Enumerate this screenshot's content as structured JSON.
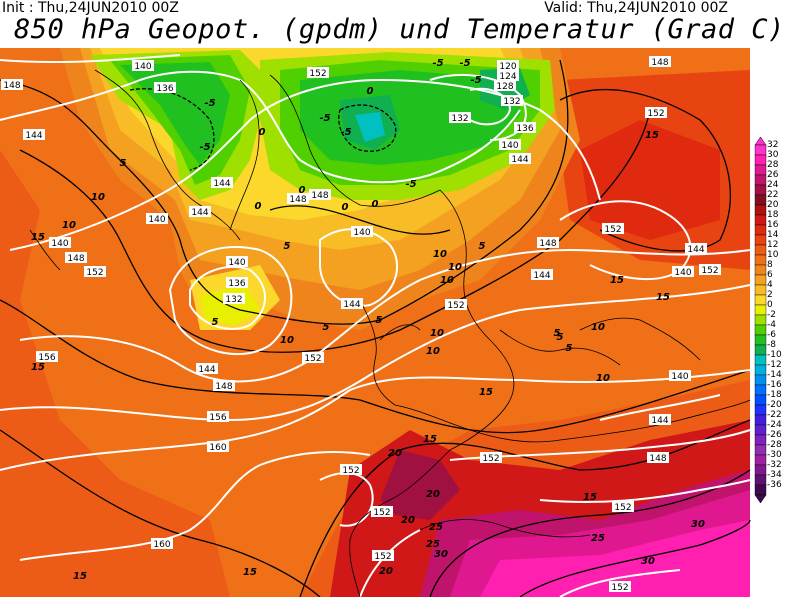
{
  "header": {
    "init": "Init : Thu,24JUN2010 00Z",
    "valid": "Valid: Thu,24JUN2010 00Z",
    "title": "850 hPa Geopot. (gpdm) und Temperatur (Grad C)"
  },
  "colorbar": {
    "labels": [
      "32",
      "30",
      "28",
      "26",
      "24",
      "22",
      "20",
      "18",
      "16",
      "14",
      "12",
      "10",
      "8",
      "6",
      "4",
      "2",
      "0",
      "-2",
      "-4",
      "-6",
      "-8",
      "-10",
      "-12",
      "-14",
      "-16",
      "-18",
      "-20",
      "-22",
      "-24",
      "-26",
      "-28",
      "-30",
      "-32",
      "-34",
      "-36"
    ],
    "colors": [
      "#ff33cc",
      "#ff1fb0",
      "#e01890",
      "#c0146c",
      "#a01040",
      "#801020",
      "#b01010",
      "#d01818",
      "#e02a10",
      "#e84412",
      "#ec5c16",
      "#f07018",
      "#f0841c",
      "#f4a020",
      "#f8bc26",
      "#fcd82c",
      "#e8f000",
      "#a0e000",
      "#50d000",
      "#20c020",
      "#10b050",
      "#00c0c0",
      "#00b0e0",
      "#0090f0",
      "#0070ff",
      "#0050ff",
      "#2030ff",
      "#4020e0",
      "#6020d0",
      "#8020c0",
      "#9030b0",
      "#a020a0",
      "#801890",
      "#601070",
      "#400850"
    ]
  },
  "geopotential_labels": [
    {
      "t": "148"
    },
    {
      "t": "140"
    },
    {
      "t": "136"
    },
    {
      "t": "152"
    },
    {
      "t": "120"
    },
    {
      "t": "124"
    },
    {
      "t": "128"
    },
    {
      "t": "132"
    },
    {
      "t": "136"
    },
    {
      "t": "132"
    },
    {
      "t": "140"
    },
    {
      "t": "144"
    },
    {
      "t": "148"
    },
    {
      "t": "152"
    },
    {
      "t": "144"
    },
    {
      "t": "144"
    },
    {
      "t": "144"
    },
    {
      "t": "140"
    },
    {
      "t": "148"
    },
    {
      "t": "148"
    },
    {
      "t": "152"
    },
    {
      "t": "140"
    },
    {
      "t": "136"
    },
    {
      "t": "132"
    },
    {
      "t": "140"
    },
    {
      "t": "144"
    },
    {
      "t": "152"
    },
    {
      "t": "148"
    },
    {
      "t": "144"
    },
    {
      "t": "144"
    },
    {
      "t": "140"
    },
    {
      "t": "144"
    },
    {
      "t": "152"
    },
    {
      "t": "148"
    },
    {
      "t": "156"
    },
    {
      "t": "156"
    },
    {
      "t": "160"
    },
    {
      "t": "152"
    },
    {
      "t": "152"
    },
    {
      "t": "152"
    },
    {
      "t": "160"
    },
    {
      "t": "152"
    },
    {
      "t": "152"
    },
    {
      "t": "144"
    },
    {
      "t": "140"
    },
    {
      "t": "148"
    },
    {
      "t": "152"
    },
    {
      "t": "152"
    },
    {
      "t": "140"
    },
    {
      "t": "148"
    },
    {
      "t": "152"
    }
  ],
  "temperature_labels": [
    {
      "t": "-5"
    },
    {
      "t": "-5"
    },
    {
      "t": "-5"
    },
    {
      "t": "-5"
    },
    {
      "t": "-5"
    },
    {
      "t": "-5"
    },
    {
      "t": "0"
    },
    {
      "t": "0"
    },
    {
      "t": "0"
    },
    {
      "t": "0"
    },
    {
      "t": "0"
    },
    {
      "t": "0"
    },
    {
      "t": "5"
    },
    {
      "t": "5"
    },
    {
      "t": "5"
    },
    {
      "t": "5"
    },
    {
      "t": "5"
    },
    {
      "t": "5"
    },
    {
      "t": "5"
    },
    {
      "t": "5"
    },
    {
      "t": "10"
    },
    {
      "t": "10"
    },
    {
      "t": "10"
    },
    {
      "t": "10"
    },
    {
      "t": "10"
    },
    {
      "t": "10"
    },
    {
      "t": "10"
    },
    {
      "t": "10"
    },
    {
      "t": "10"
    },
    {
      "t": "15"
    },
    {
      "t": "15"
    },
    {
      "t": "15"
    },
    {
      "t": "15"
    },
    {
      "t": "15"
    },
    {
      "t": "15"
    },
    {
      "t": "15"
    },
    {
      "t": "15"
    },
    {
      "t": "20"
    },
    {
      "t": "20"
    },
    {
      "t": "20"
    },
    {
      "t": "20"
    },
    {
      "t": "25"
    },
    {
      "t": "25"
    },
    {
      "t": "25"
    },
    {
      "t": "30"
    },
    {
      "t": "30"
    },
    {
      "t": "30"
    },
    {
      "t": "10"
    },
    {
      "t": "15"
    },
    {
      "t": "5"
    },
    {
      "t": "-5"
    },
    {
      "t": "-5"
    },
    {
      "t": "15"
    }
  ]
}
